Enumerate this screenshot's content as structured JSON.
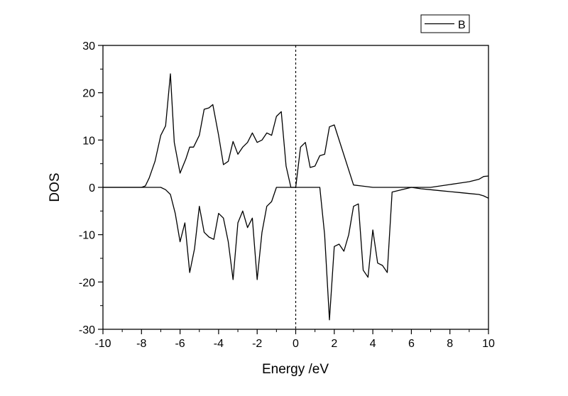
{
  "chart_data": {
    "type": "line",
    "title": "",
    "xlabel": "Energy /eV",
    "ylabel": "DOS",
    "xlim": [
      -10,
      10
    ],
    "ylim": [
      -30,
      30
    ],
    "x_ticks": [
      -10,
      -8,
      -6,
      -4,
      -2,
      0,
      2,
      4,
      6,
      8,
      10
    ],
    "y_ticks": [
      -30,
      -20,
      -10,
      0,
      10,
      20,
      30
    ],
    "grid": false,
    "legend_position": "top-right",
    "reference_line": {
      "x": 0,
      "style": "dashed"
    },
    "legend": [
      {
        "label": "B"
      }
    ],
    "series": [
      {
        "name": "B",
        "color": "#000000",
        "x": [
          -10,
          -8,
          -7.8,
          -7.6,
          -7.3,
          -7.0,
          -6.75,
          -6.5,
          -6.3,
          -6.0,
          -5.7,
          -5.5,
          -5.3,
          -5.0,
          -4.75,
          -4.5,
          -4.3,
          -4.0,
          -3.75,
          -3.5,
          -3.25,
          -3.0,
          -2.75,
          -2.5,
          -2.25,
          -2.0,
          -1.75,
          -1.5,
          -1.25,
          -1.0,
          -0.75,
          -0.5,
          -0.25,
          0.0,
          0.25,
          0.5,
          0.75,
          1.0,
          1.25,
          1.5,
          1.75,
          2.0,
          3.0,
          4.0,
          5.0,
          6.0,
          6.5,
          7.0,
          7.5,
          8.0,
          8.5,
          9.0,
          9.5,
          9.75,
          10.0
        ],
        "y": [
          0,
          0,
          0.3,
          2,
          5.5,
          11,
          13,
          24,
          9.5,
          3,
          6,
          8.5,
          8.5,
          11,
          16.5,
          16.8,
          17.5,
          11,
          4.8,
          5.5,
          9.7,
          7,
          8.5,
          9.5,
          11.5,
          9.5,
          10,
          11.5,
          11,
          15,
          16,
          4.5,
          0,
          0,
          8.5,
          9.5,
          4.2,
          4.5,
          6.7,
          7,
          12.8,
          13.2,
          0.5,
          0,
          0,
          0,
          0,
          0,
          0.3,
          0.6,
          0.9,
          1.2,
          1.7,
          2.3,
          2.4
        ]
      },
      {
        "name": "",
        "color": "#000000",
        "x": [
          -10,
          -7.0,
          -6.75,
          -6.5,
          -6.25,
          -6.0,
          -5.75,
          -5.5,
          -5.25,
          -5.0,
          -4.75,
          -4.5,
          -4.25,
          -4.0,
          -3.75,
          -3.5,
          -3.25,
          -3.0,
          -2.75,
          -2.5,
          -2.25,
          -2.0,
          -1.75,
          -1.5,
          -1.25,
          -1.0,
          -0.75,
          0.0,
          1.0,
          1.25,
          1.5,
          1.75,
          2.0,
          2.25,
          2.5,
          2.75,
          3.0,
          3.25,
          3.5,
          3.75,
          4.0,
          4.25,
          4.5,
          4.75,
          5.0,
          6.0,
          6.5,
          7.0,
          7.5,
          8.0,
          8.5,
          9.0,
          9.5,
          9.75,
          10.0
        ],
        "y": [
          0,
          0,
          -0.5,
          -1.5,
          -5.5,
          -11.5,
          -7.5,
          -18,
          -13,
          -4,
          -9.5,
          -10.5,
          -11,
          -5.5,
          -6.5,
          -11.5,
          -19.5,
          -7.5,
          -5,
          -8.5,
          -6.5,
          -19.5,
          -9.5,
          -4,
          -3,
          0,
          0,
          0,
          0,
          0,
          -10,
          -28,
          -12.5,
          -12,
          -13.5,
          -10,
          -4,
          -3.5,
          -17.5,
          -19,
          -9,
          -16,
          -16.5,
          -18,
          -1,
          0,
          -0.3,
          -0.5,
          -0.7,
          -0.9,
          -1.1,
          -1.3,
          -1.5,
          -1.8,
          -2.3
        ]
      }
    ]
  }
}
